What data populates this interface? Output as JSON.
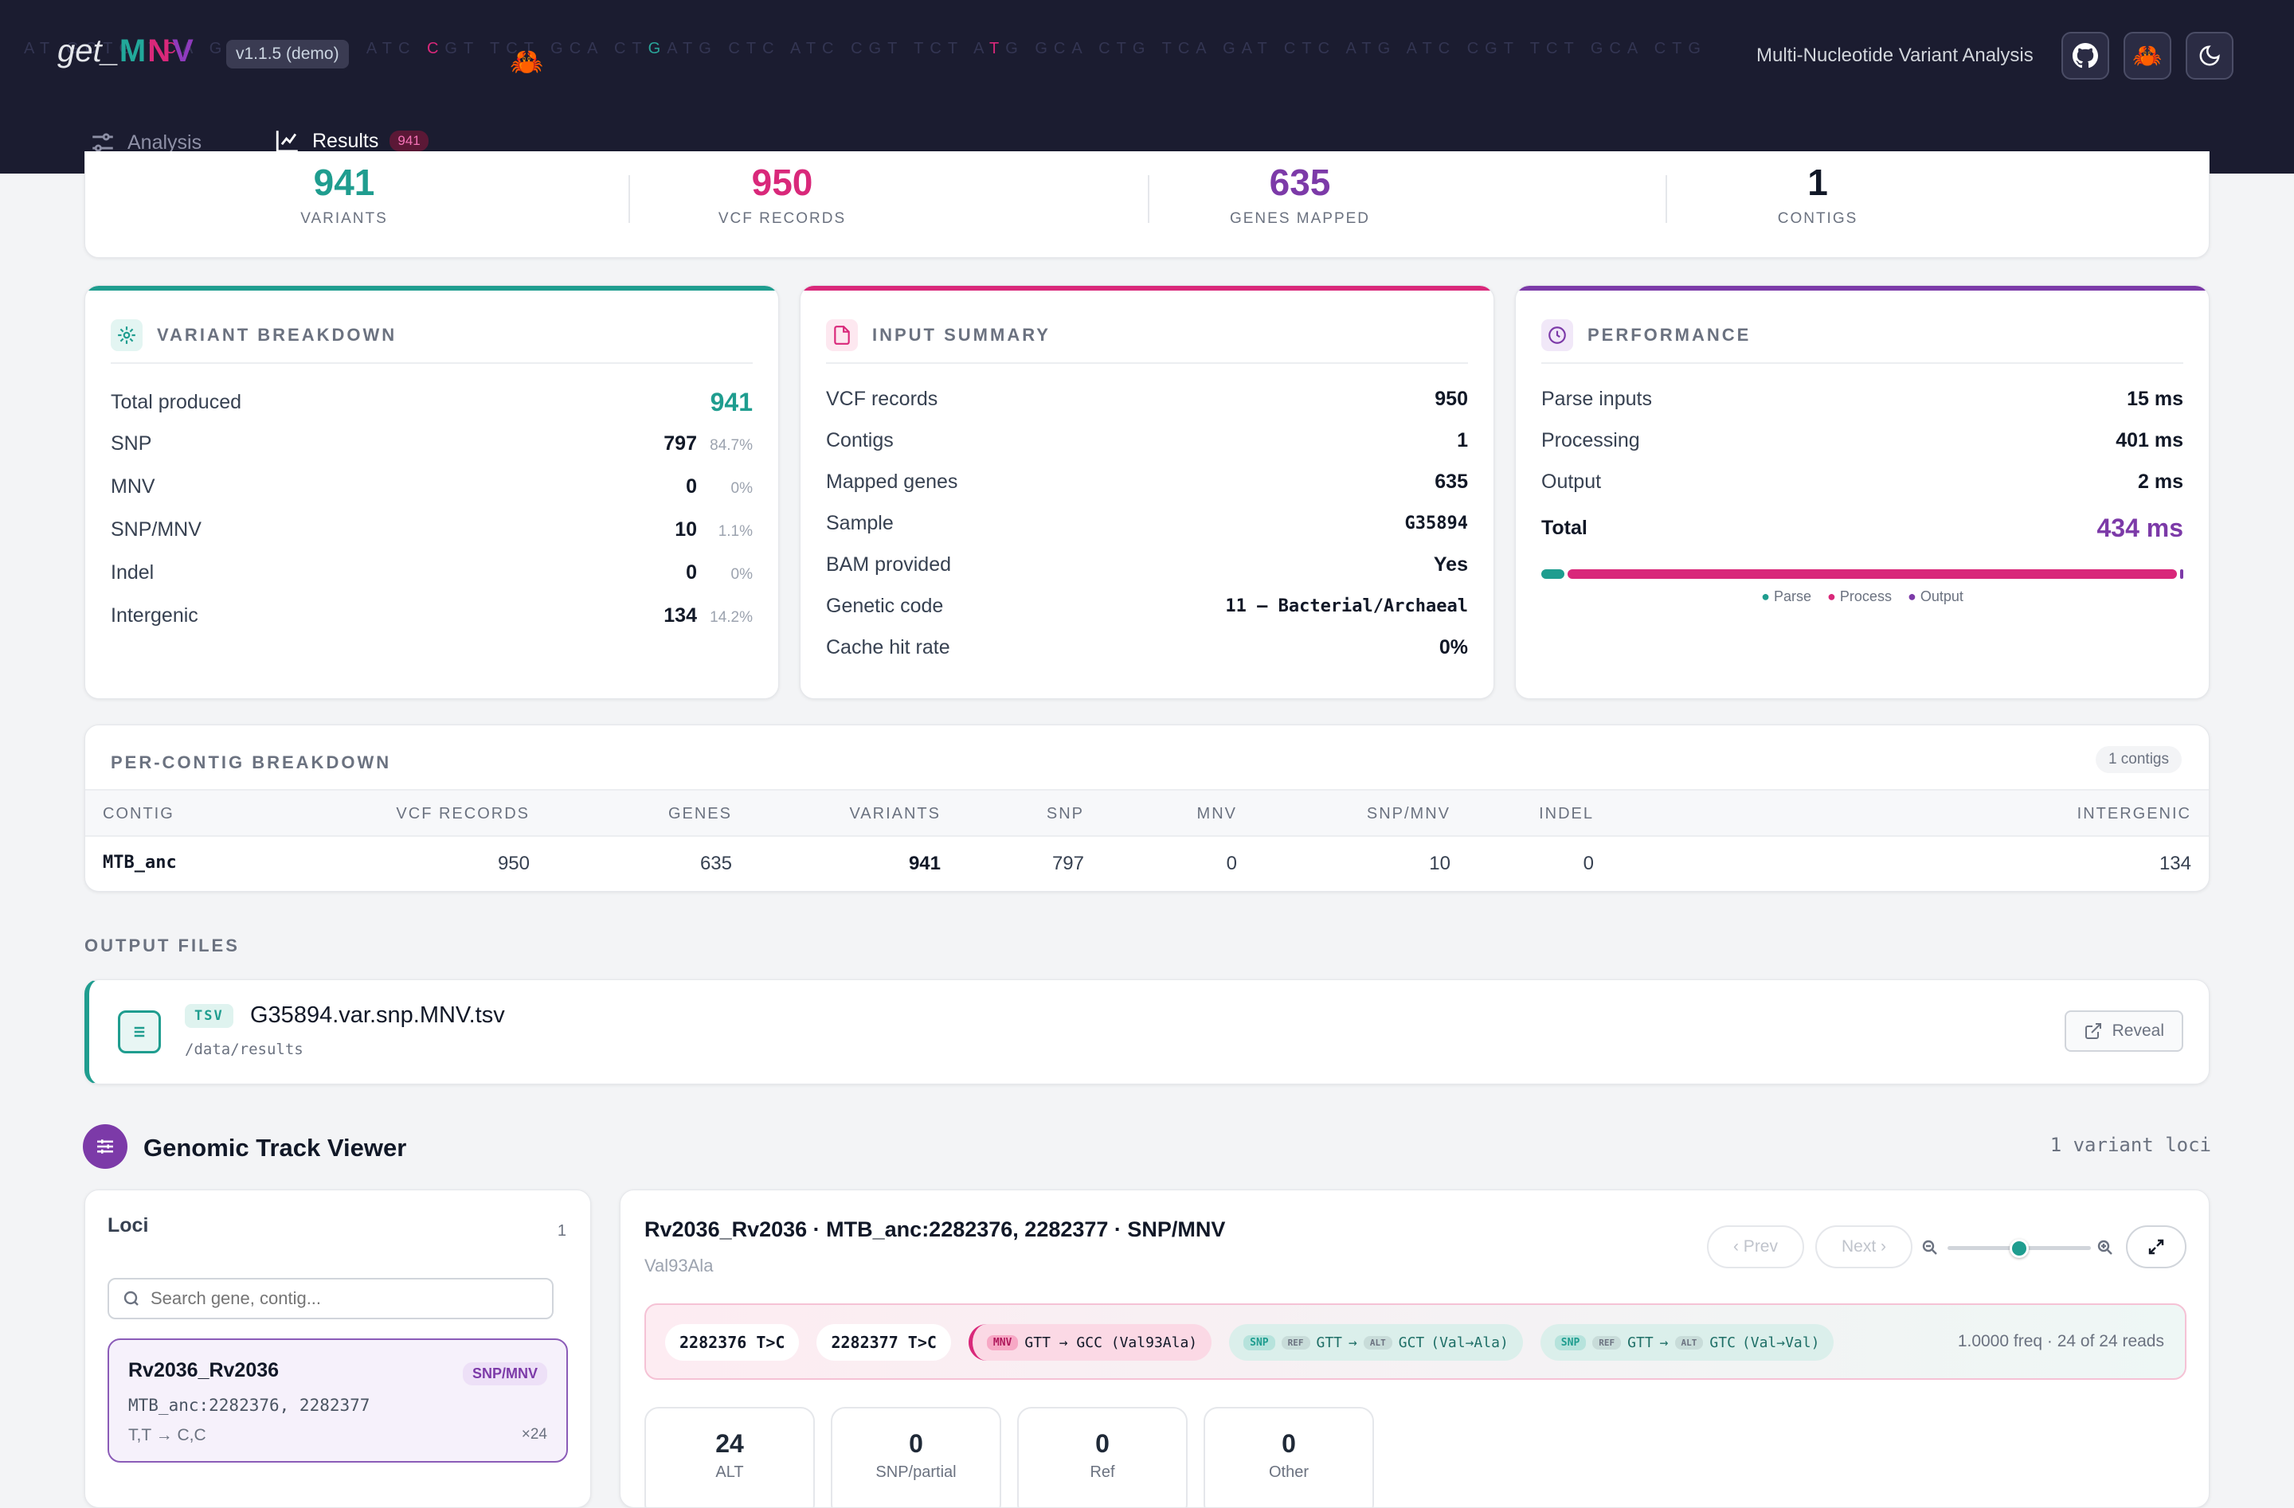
{
  "header": {
    "dna_bg": [
      "A",
      "T",
      " ",
      "G",
      "C",
      "T",
      "G",
      " ",
      "T",
      "C",
      "A",
      " ",
      "G",
      "A",
      "T",
      "C",
      "C",
      " ",
      "A",
      "T",
      "G",
      " ",
      "A",
      "T",
      "C",
      " ",
      "C",
      "G",
      "T",
      " ",
      "T",
      "C",
      "T",
      " ",
      "G",
      "C",
      "A",
      " ",
      "C",
      "T",
      "G",
      "A",
      "T",
      "G",
      " ",
      "C",
      "T",
      "C",
      " ",
      "A",
      "T",
      "C",
      " ",
      "C",
      "G",
      "T",
      " ",
      "T",
      "C",
      "T",
      " ",
      "A",
      "T",
      "G",
      " ",
      "G",
      "C",
      "A",
      " ",
      "C",
      "T",
      "G",
      " ",
      "T",
      "C",
      "A",
      " ",
      "G",
      "A",
      "T",
      " ",
      "C",
      "T",
      "C",
      " ",
      "A",
      "T",
      "G",
      " ",
      "A",
      "T",
      "C",
      " ",
      "C",
      "G",
      "T",
      " ",
      "T",
      "C",
      "T",
      " ",
      "G",
      "C",
      "A",
      " ",
      "C",
      "T",
      "G"
    ],
    "brand_prefix": "get_",
    "brand_m": "M",
    "brand_n": "N",
    "brand_v": "V",
    "version": "v1.1.5 (demo)",
    "tagline": "Multi-Nucleotide Variant Analysis",
    "icons": [
      "github-icon",
      "crab-icon",
      "moon-icon"
    ]
  },
  "nav": {
    "tabs": [
      {
        "label": "Analysis",
        "active": false
      },
      {
        "label": "Results",
        "active": true,
        "count": "941"
      }
    ]
  },
  "stats": [
    {
      "value": "941",
      "label": "VARIANTS",
      "color": "#1f9d8f"
    },
    {
      "value": "950",
      "label": "VCF RECORDS",
      "color": "#d9287a"
    },
    {
      "value": "635",
      "label": "GENES MAPPED",
      "color": "#7c3aa8"
    },
    {
      "value": "1",
      "label": "CONTIGS",
      "color": "#111827"
    }
  ],
  "variant_breakdown": {
    "title": "VARIANT BREAKDOWN",
    "total_label": "Total produced",
    "total_value": "941",
    "rows": [
      {
        "label": "SNP",
        "value": "797",
        "pct": "84.7%"
      },
      {
        "label": "MNV",
        "value": "0",
        "pct": "0%"
      },
      {
        "label": "SNP/MNV",
        "value": "10",
        "pct": "1.1%"
      },
      {
        "label": "Indel",
        "value": "0",
        "pct": "0%"
      },
      {
        "label": "Intergenic",
        "value": "134",
        "pct": "14.2%"
      }
    ]
  },
  "input_summary": {
    "title": "INPUT SUMMARY",
    "rows": [
      {
        "label": "VCF records",
        "value": "950"
      },
      {
        "label": "Contigs",
        "value": "1"
      },
      {
        "label": "Mapped genes",
        "value": "635"
      },
      {
        "label": "Sample",
        "value": "G35894"
      },
      {
        "label": "BAM provided",
        "value": "Yes"
      },
      {
        "label": "Genetic code",
        "value": "11 — Bacterial/Archaeal"
      },
      {
        "label": "Cache hit rate",
        "value": "0%"
      }
    ]
  },
  "performance": {
    "title": "PERFORMANCE",
    "rows": [
      {
        "label": "Parse inputs",
        "value": "15 ms"
      },
      {
        "label": "Processing",
        "value": "401 ms"
      },
      {
        "label": "Output",
        "value": "2 ms"
      }
    ],
    "total_label": "Total",
    "total_value": "434 ms",
    "bar": {
      "parse_ms": 15,
      "process_ms": 401,
      "output_ms": 2
    },
    "legend": [
      "Parse",
      "Process",
      "Output"
    ]
  },
  "contig_table": {
    "title": "PER-CONTIG BREAKDOWN",
    "pill": "1 contigs",
    "headers": [
      "CONTIG",
      "VCF RECORDS",
      "GENES",
      "VARIANTS",
      "SNP",
      "MNV",
      "SNP/MNV",
      "INDEL",
      "INTERGENIC"
    ],
    "rows": [
      [
        "MTB_anc",
        "950",
        "635",
        "941",
        "797",
        "0",
        "10",
        "0",
        "134"
      ]
    ]
  },
  "output_files": {
    "title": "OUTPUT FILES",
    "files": [
      {
        "type": "TSV",
        "name": "G35894.var.snp.MNV.tsv",
        "path": "/data/results",
        "action": "Reveal"
      }
    ]
  },
  "genomic_viewer": {
    "title": "Genomic Track Viewer",
    "loci_count_text": "1 variant loci",
    "loci_panel": {
      "title": "Loci",
      "count": "1",
      "search_placeholder": "Search gene, contig...",
      "items": [
        {
          "gene": "Rv2036_Rv2036",
          "badge": "SNP/MNV",
          "pos": "MTB_anc:2282376, 2282377",
          "change": "T,T → C,C",
          "reads": "×24"
        }
      ]
    },
    "detail": {
      "title": "Rv2036_Rv2036 · MTB_anc:2282376, 2282377 · SNP/MNV",
      "subtitle": "Val93Ala",
      "prev": "‹ Prev",
      "next": "Next ›",
      "zoom_level": 0.5,
      "chips": [
        {
          "kind": "pos",
          "text": "2282376 T>C"
        },
        {
          "kind": "pos",
          "text": "2282377 T>C"
        },
        {
          "kind": "mnv",
          "tag": "MNV",
          "text": "GTT → GCC (Val93Ala)"
        },
        {
          "kind": "snp",
          "tag": "SNP",
          "ref": "REF",
          "ref_codon": "GTT",
          "alt": "ALT",
          "alt_codon": "GCT",
          "aa": "(Val→Ala)"
        },
        {
          "kind": "snp",
          "tag": "SNP",
          "ref": "REF",
          "ref_codon": "GTT",
          "alt": "ALT",
          "alt_codon": "GTC",
          "aa": "(Val→Val)"
        }
      ],
      "freq_text": "1.0000 freq · 24 of 24 reads",
      "metrics": [
        {
          "value": "24",
          "label": "ALT"
        },
        {
          "value": "0",
          "label": "SNP/partial"
        },
        {
          "value": "0",
          "label": "Ref"
        },
        {
          "value": "0",
          "label": "Other"
        }
      ]
    }
  },
  "colors": {
    "teal": "#1f9d8f",
    "pink": "#d9287a",
    "purple": "#7c3aa8",
    "navy": "#1b1c30"
  }
}
